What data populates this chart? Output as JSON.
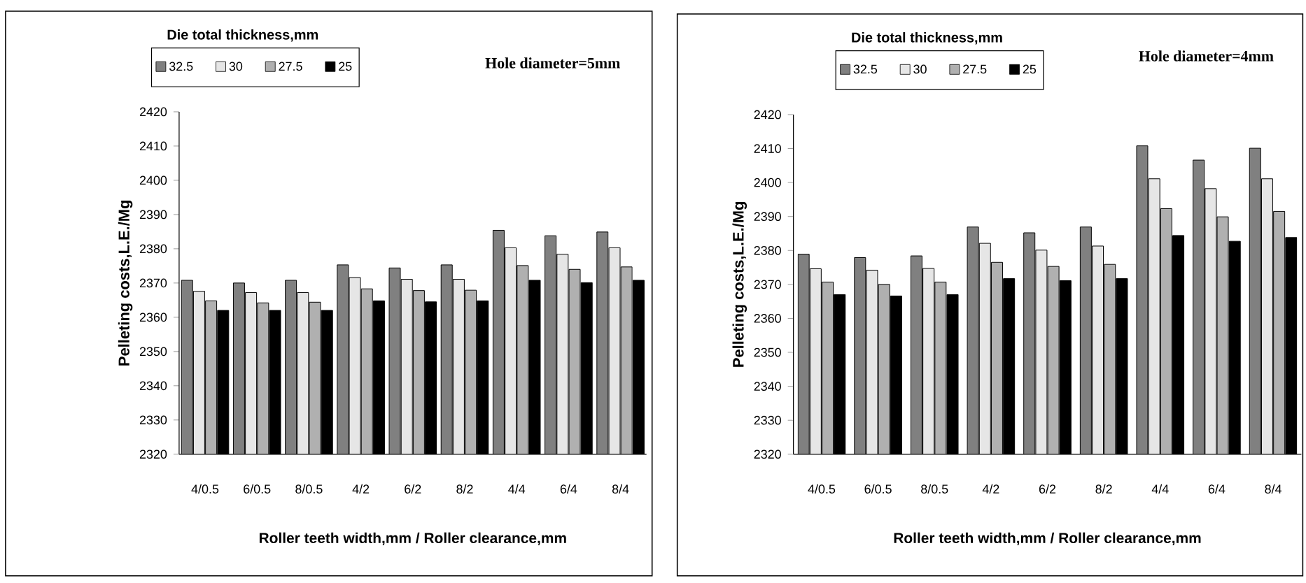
{
  "chart_data": [
    {
      "type": "bar",
      "xlabel": "Roller teeth width,mm / Roller clearance,mm",
      "ylabel": "Pelleting costs,L.E./Mg",
      "legend_title": "Die total thickness,mm",
      "annotations": [
        "Hole diameter=5mm"
      ],
      "categories": [
        "4/0.5",
        "6/0.5",
        "8/0.5",
        "4/2",
        "6/2",
        "8/2",
        "4/4",
        "6/4",
        "8/4"
      ],
      "ylim": [
        2320,
        2420
      ],
      "yticks": [
        2320,
        2330,
        2340,
        2350,
        2360,
        2370,
        2380,
        2390,
        2400,
        2410,
        2420
      ],
      "legend": "top",
      "series": [
        {
          "name": "32.5",
          "color": "#808080",
          "values": [
            2370.8,
            2370,
            2370.8,
            2375.3,
            2374.4,
            2375.3,
            2385.4,
            2383.8,
            2384.9
          ]
        },
        {
          "name": "30",
          "color": "#e6e6e6",
          "values": [
            2367.6,
            2367.2,
            2367.2,
            2371.6,
            2371.1,
            2371.1,
            2380.3,
            2378.4,
            2380.3
          ]
        },
        {
          "name": "27.5",
          "color": "#b0b0b0",
          "values": [
            2364.8,
            2364.2,
            2364.4,
            2368.3,
            2367.8,
            2367.9,
            2375.1,
            2374,
            2374.7
          ]
        },
        {
          "name": "25",
          "color": "#000000",
          "values": [
            2362,
            2362,
            2362,
            2364.8,
            2364.5,
            2364.8,
            2370.8,
            2370.1,
            2370.8
          ]
        }
      ]
    },
    {
      "type": "bar",
      "xlabel": "Roller teeth width,mm / Roller clearance,mm",
      "ylabel": "Pelleting costs,L.E./Mg",
      "legend_title": "Die total thickness,mm",
      "annotations": [
        "Hole diameter=4mm"
      ],
      "categories": [
        "4/0.5",
        "6/0.5",
        "8/0.5",
        "4/2",
        "6/2",
        "8/2",
        "4/4",
        "6/4",
        "8/4"
      ],
      "ylim": [
        2320,
        2420
      ],
      "yticks": [
        2320,
        2330,
        2340,
        2350,
        2360,
        2370,
        2380,
        2390,
        2400,
        2410,
        2420
      ],
      "legend": "top",
      "series": [
        {
          "name": "32.5",
          "color": "#808080",
          "values": [
            2378.9,
            2377.9,
            2378.4,
            2386.9,
            2385.2,
            2386.9,
            2410.8,
            2406.6,
            2410.1
          ]
        },
        {
          "name": "30",
          "color": "#e6e6e6",
          "values": [
            2374.6,
            2374.2,
            2374.7,
            2382.1,
            2380.1,
            2381.3,
            2401.1,
            2398.2,
            2401.1
          ]
        },
        {
          "name": "27.5",
          "color": "#b0b0b0",
          "values": [
            2370.7,
            2370,
            2370.7,
            2376.5,
            2375.3,
            2375.9,
            2392.3,
            2389.9,
            2391.5
          ]
        },
        {
          "name": "25",
          "color": "#000000",
          "values": [
            2367,
            2366.6,
            2367,
            2371.7,
            2371.1,
            2371.7,
            2384.4,
            2382.7,
            2383.8
          ]
        }
      ]
    }
  ]
}
